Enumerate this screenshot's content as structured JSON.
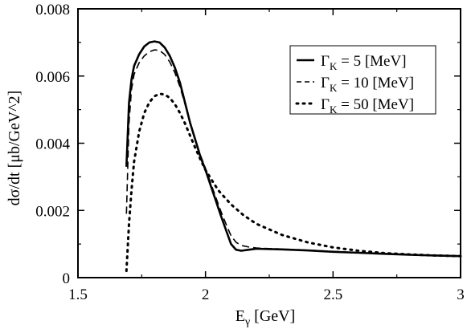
{
  "chart_data": {
    "type": "line",
    "xlabel": "E",
    "xlabel_sub": "γ",
    "xlabel_unit": " [GeV]",
    "ylabel": "dσ/dt [μb/GeV^2]",
    "xlim": [
      1.5,
      3.0
    ],
    "ylim": [
      0,
      0.008
    ],
    "x_ticks": [
      1.5,
      2.0,
      2.5,
      3.0
    ],
    "x_tick_labels": [
      "1.5",
      "2",
      "2.5",
      "3"
    ],
    "y_ticks": [
      0,
      0.002,
      0.004,
      0.006,
      0.008
    ],
    "y_tick_labels": [
      "0",
      "0.002",
      "0.004",
      "0.006",
      "0.008"
    ],
    "grid": false,
    "legend_position": "top-right",
    "series": [
      {
        "name": "Γ_K = 5  [MeV]",
        "legend_main": "Γ",
        "legend_sub": "K",
        "legend_rest": " = 5  [MeV]",
        "style": "solid",
        "points": [
          [
            1.69,
            0.0033
          ],
          [
            1.7,
            0.0052
          ],
          [
            1.71,
            0.0059
          ],
          [
            1.72,
            0.0063
          ],
          [
            1.74,
            0.00665
          ],
          [
            1.76,
            0.00688
          ],
          [
            1.78,
            0.007
          ],
          [
            1.8,
            0.00703
          ],
          [
            1.82,
            0.007
          ],
          [
            1.84,
            0.00685
          ],
          [
            1.86,
            0.0066
          ],
          [
            1.88,
            0.00625
          ],
          [
            1.9,
            0.0058
          ],
          [
            1.92,
            0.0052
          ],
          [
            1.94,
            0.0046
          ],
          [
            1.96,
            0.0041
          ],
          [
            1.98,
            0.0036
          ],
          [
            2.0,
            0.0032
          ],
          [
            2.02,
            0.00275
          ],
          [
            2.04,
            0.0023
          ],
          [
            2.06,
            0.00185
          ],
          [
            2.08,
            0.00142
          ],
          [
            2.1,
            0.001
          ],
          [
            2.12,
            0.00083
          ],
          [
            2.14,
            0.0008
          ],
          [
            2.17,
            0.00083
          ],
          [
            2.2,
            0.00086
          ],
          [
            2.3,
            0.00084
          ],
          [
            2.4,
            0.00081
          ],
          [
            2.5,
            0.00077
          ],
          [
            2.6,
            0.00074
          ],
          [
            2.7,
            0.00071
          ],
          [
            2.8,
            0.00068
          ],
          [
            2.9,
            0.00066
          ],
          [
            3.0,
            0.00064
          ]
        ]
      },
      {
        "name": "Γ_K = 10 [MeV]",
        "legend_main": "Γ",
        "legend_sub": "K",
        "legend_rest": " = 10 [MeV]",
        "style": "dashed",
        "points": [
          [
            1.69,
            0.0019
          ],
          [
            1.7,
            0.0046
          ],
          [
            1.71,
            0.0056
          ],
          [
            1.72,
            0.00605
          ],
          [
            1.74,
            0.0064
          ],
          [
            1.76,
            0.0066
          ],
          [
            1.78,
            0.00672
          ],
          [
            1.8,
            0.00678
          ],
          [
            1.82,
            0.00676
          ],
          [
            1.84,
            0.00664
          ],
          [
            1.86,
            0.00642
          ],
          [
            1.88,
            0.0061
          ],
          [
            1.9,
            0.00568
          ],
          [
            1.92,
            0.00515
          ],
          [
            1.94,
            0.0046
          ],
          [
            1.96,
            0.00412
          ],
          [
            1.98,
            0.00365
          ],
          [
            2.0,
            0.00325
          ],
          [
            2.02,
            0.00282
          ],
          [
            2.04,
            0.0024
          ],
          [
            2.06,
            0.00198
          ],
          [
            2.08,
            0.0016
          ],
          [
            2.1,
            0.00125
          ],
          [
            2.12,
            0.00105
          ],
          [
            2.14,
            0.00096
          ],
          [
            2.17,
            0.00091
          ],
          [
            2.2,
            0.00088
          ],
          [
            2.3,
            0.00085
          ],
          [
            2.4,
            0.00082
          ],
          [
            2.5,
            0.00078
          ],
          [
            2.6,
            0.00074
          ],
          [
            2.7,
            0.00071
          ],
          [
            2.8,
            0.00068
          ],
          [
            2.9,
            0.00066
          ],
          [
            3.0,
            0.00064
          ]
        ]
      },
      {
        "name": "Γ_K = 50 [MeV]",
        "legend_main": "Γ",
        "legend_sub": "K",
        "legend_rest": " = 50 [MeV]",
        "style": "dotted",
        "points": [
          [
            1.69,
            0.0002
          ],
          [
            1.7,
            0.0016
          ],
          [
            1.71,
            0.0026
          ],
          [
            1.72,
            0.00345
          ],
          [
            1.74,
            0.00435
          ],
          [
            1.76,
            0.0049
          ],
          [
            1.78,
            0.00522
          ],
          [
            1.8,
            0.0054
          ],
          [
            1.82,
            0.00547
          ],
          [
            1.84,
            0.00545
          ],
          [
            1.86,
            0.00535
          ],
          [
            1.88,
            0.00516
          ],
          [
            1.9,
            0.0049
          ],
          [
            1.92,
            0.00458
          ],
          [
            1.94,
            0.00422
          ],
          [
            1.96,
            0.00386
          ],
          [
            1.98,
            0.00352
          ],
          [
            2.0,
            0.0032
          ],
          [
            2.05,
            0.0026
          ],
          [
            2.1,
            0.00218
          ],
          [
            2.15,
            0.00185
          ],
          [
            2.2,
            0.0016
          ],
          [
            2.3,
            0.00127
          ],
          [
            2.4,
            0.00105
          ],
          [
            2.5,
            0.0009
          ],
          [
            2.6,
            0.0008
          ],
          [
            2.7,
            0.00073
          ],
          [
            2.8,
            0.00069
          ],
          [
            2.9,
            0.00066
          ],
          [
            3.0,
            0.00064
          ]
        ]
      }
    ]
  }
}
